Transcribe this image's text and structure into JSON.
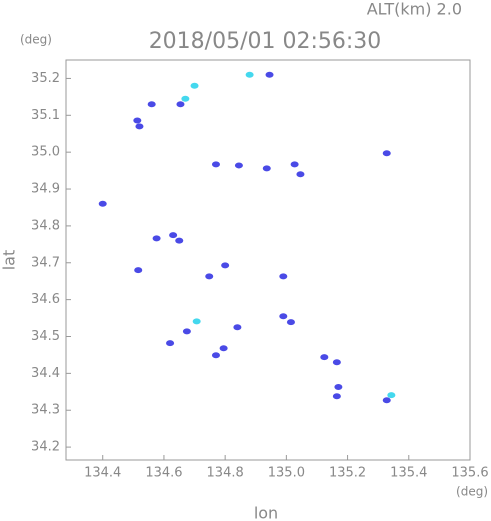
{
  "chart_data": {
    "type": "scatter",
    "title": "2018/05/01 02:56:30",
    "subtitle": "ALT(km)  2.0",
    "y_unit": "(deg)",
    "x_unit": "(deg)",
    "xlabel": "lon",
    "ylabel": "lat",
    "xlim": [
      134.28,
      135.6
    ],
    "ylim": [
      34.165,
      35.25
    ],
    "xticks": [
      {
        "value": 134.4,
        "label": "134.4"
      },
      {
        "value": 134.6,
        "label": "134.6"
      },
      {
        "value": 134.8,
        "label": "134.8"
      },
      {
        "value": 135.0,
        "label": "135.0"
      },
      {
        "value": 135.2,
        "label": "135.2"
      },
      {
        "value": 135.4,
        "label": "135.4"
      },
      {
        "value": 135.6,
        "label": "135.6"
      }
    ],
    "yticks": [
      {
        "value": 34.2,
        "label": "34.2"
      },
      {
        "value": 34.3,
        "label": "34.3"
      },
      {
        "value": 34.4,
        "label": "34.4"
      },
      {
        "value": 34.5,
        "label": "34.5"
      },
      {
        "value": 34.6,
        "label": "34.6"
      },
      {
        "value": 34.7,
        "label": "34.7"
      },
      {
        "value": 34.8,
        "label": "34.8"
      },
      {
        "value": 34.9,
        "label": "34.9"
      },
      {
        "value": 35.0,
        "label": "35.0"
      },
      {
        "value": 35.1,
        "label": "35.1"
      },
      {
        "value": 35.2,
        "label": "35.2"
      }
    ],
    "series": [
      {
        "color": "#4a4ae6",
        "x": [
          134.513,
          134.52,
          134.56,
          134.654,
          134.945,
          134.77,
          134.845,
          134.936,
          135.027,
          135.046,
          135.328,
          134.4,
          134.576,
          134.63,
          134.65,
          134.516,
          134.748,
          134.8,
          134.99,
          134.99,
          135.015,
          134.675,
          134.62,
          134.795,
          134.77,
          134.84,
          135.124,
          135.165,
          135.17,
          135.165,
          135.328
        ],
        "y": [
          35.086,
          35.07,
          35.13,
          35.13,
          35.21,
          34.967,
          34.964,
          34.956,
          34.967,
          34.94,
          34.997,
          34.86,
          34.766,
          34.775,
          34.76,
          34.68,
          34.663,
          34.693,
          34.663,
          34.555,
          34.539,
          34.514,
          34.482,
          34.468,
          34.449,
          34.525,
          34.444,
          34.43,
          34.363,
          34.338,
          34.327
        ]
      },
      {
        "color": "#44d8ee",
        "x": [
          134.67,
          134.7,
          134.88,
          134.707,
          135.343
        ],
        "y": [
          35.145,
          35.18,
          35.21,
          34.541,
          34.341
        ]
      }
    ]
  }
}
